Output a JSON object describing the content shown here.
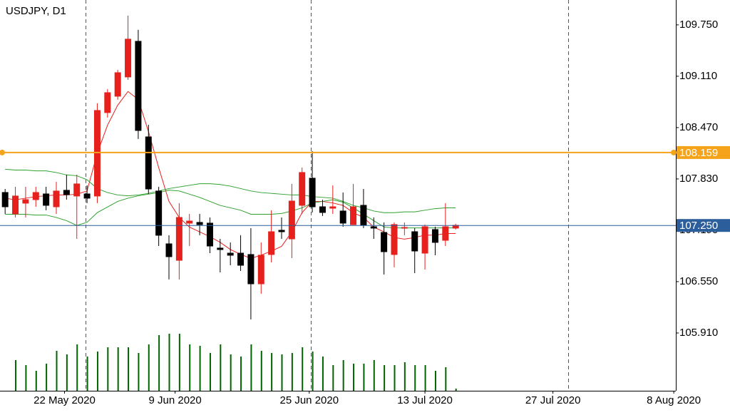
{
  "chart_data": {
    "type": "candlestick",
    "title": "USDJPY, D1",
    "categories": [
      null,
      null,
      null,
      null,
      null,
      null,
      null,
      null,
      null,
      null,
      null,
      null,
      null,
      null,
      null,
      null,
      null,
      null,
      null,
      null,
      null,
      null,
      null,
      null,
      null,
      null,
      null,
      null,
      null,
      null,
      null,
      null,
      null,
      null,
      null,
      null,
      null,
      null,
      null,
      null,
      null,
      null,
      null,
      null,
      null
    ],
    "open": [
      107.661,
      107.394,
      107.528,
      107.572,
      107.643,
      107.483,
      107.688,
      107.617,
      107.643,
      107.617,
      108.657,
      108.861,
      109.101,
      109.545,
      108.354,
      107.679,
      107.021,
      106.816,
      107.279,
      107.288,
      107.279,
      106.968,
      106.905,
      106.905,
      106.888,
      106.523,
      106.888,
      107.19,
      107.083,
      107.501,
      107.839,
      107.483,
      107.465,
      107.43,
      107.261,
      107.501,
      107.234,
      107.163,
      106.888,
      107.217,
      107.172,
      106.905,
      107.199,
      107.065,
      107.217
    ],
    "high": [
      107.705,
      107.732,
      107.732,
      107.732,
      107.732,
      107.794,
      107.883,
      107.883,
      107.75,
      108.772,
      108.95,
      109.19,
      109.865,
      109.688,
      108.505,
      107.732,
      107.128,
      107.528,
      107.394,
      107.394,
      107.35,
      107.083,
      107.039,
      107.128,
      107.217,
      107.039,
      107.439,
      107.35,
      107.768,
      107.972,
      108.177,
      107.572,
      107.75,
      107.661,
      107.768,
      107.705,
      107.35,
      107.288,
      107.288,
      107.288,
      107.217,
      107.261,
      107.234,
      107.528,
      107.272
    ],
    "low": [
      107.394,
      107.35,
      107.35,
      107.483,
      107.439,
      107.394,
      107.572,
      107.083,
      107.528,
      107.528,
      108.594,
      108.817,
      109.065,
      108.328,
      107.643,
      106.994,
      106.577,
      106.577,
      106.994,
      107.128,
      106.905,
      106.665,
      106.754,
      106.683,
      106.079,
      106.399,
      106.79,
      107.083,
      106.843,
      107.394,
      107.412,
      107.368,
      107.394,
      107.234,
      107.261,
      107.217,
      107.083,
      106.639,
      106.728,
      107.128,
      106.656,
      106.701,
      106.879,
      106.994,
      107.199
    ],
    "close": [
      107.483,
      107.617,
      107.572,
      107.661,
      107.501,
      107.679,
      107.634,
      107.768,
      107.59,
      108.683,
      108.905,
      109.154,
      109.572,
      108.434,
      107.705,
      107.128,
      106.861,
      107.35,
      107.305,
      107.261,
      106.994,
      106.95,
      106.879,
      106.754,
      106.523,
      106.879,
      107.172,
      107.172,
      107.554,
      107.91,
      107.483,
      107.412,
      107.483,
      107.279,
      107.483,
      107.252,
      107.217,
      106.923,
      107.261,
      107.225,
      106.932,
      107.234,
      107.039,
      107.234,
      107.252
    ],
    "up_color": "#e6201c",
    "down_color": "#000000",
    "lines": [
      {
        "color": "#e6201c",
        "values": [
          107.59,
          107.57,
          107.59,
          107.61,
          107.62,
          107.63,
          107.63,
          107.64,
          107.68,
          108.15,
          108.5,
          108.75,
          108.92,
          108.82,
          108.42,
          107.97,
          107.55,
          107.35,
          107.23,
          107.17,
          107.11,
          107.04,
          106.95,
          106.89,
          106.84,
          106.88,
          106.93,
          106.99,
          107.17,
          107.41,
          107.55,
          107.55,
          107.53,
          107.5,
          107.41,
          107.35,
          107.23,
          107.17,
          107.1,
          107.08,
          107.1,
          107.13,
          107.13,
          107.15,
          107.15
        ]
      },
      {
        "color": "#2ea02e",
        "values": [
          107.95,
          107.94,
          107.94,
          107.93,
          107.93,
          107.91,
          107.88,
          107.87,
          107.82,
          107.71,
          107.66,
          107.63,
          107.62,
          107.63,
          107.65,
          107.68,
          107.71,
          107.73,
          107.75,
          107.77,
          107.77,
          107.76,
          107.74,
          107.71,
          107.68,
          107.66,
          107.65,
          107.64,
          107.63,
          107.63,
          107.61,
          107.6,
          107.59,
          107.55,
          107.5,
          107.47,
          107.43,
          107.41,
          107.41,
          107.42,
          107.42,
          107.44,
          107.46,
          107.47,
          107.47
        ]
      },
      {
        "color": "#2ea02e",
        "values": [
          107.39,
          107.39,
          107.39,
          107.38,
          107.38,
          107.35,
          107.31,
          107.25,
          107.29,
          107.41,
          107.48,
          107.55,
          107.59,
          107.62,
          107.64,
          107.66,
          107.69,
          107.68,
          107.64,
          107.6,
          107.55,
          107.5,
          107.47,
          107.44,
          107.39,
          107.39,
          107.39,
          107.4,
          107.43,
          107.47,
          107.53,
          107.55,
          107.57,
          107.54,
          107.47,
          107.39,
          107.31,
          107.23,
          107.22,
          107.22,
          107.22,
          107.22,
          107.22,
          107.22,
          107.22
        ]
      }
    ],
    "volume": {
      "color": "#006400",
      "ylim": [
        0,
        100
      ],
      "values": [
        null,
        43,
        36,
        28,
        38,
        56,
        51,
        65,
        48,
        55,
        61,
        61,
        61,
        53,
        65,
        78,
        80,
        80,
        65,
        63,
        53,
        65,
        51,
        48,
        65,
        56,
        53,
        51,
        53,
        61,
        55,
        48,
        36,
        43,
        38,
        38,
        43,
        36,
        36,
        40,
        36,
        36,
        28,
        33,
        3
      ]
    },
    "hlines": [
      {
        "value": 108.159,
        "label": "108.159",
        "color": "#f5a31a"
      },
      {
        "value": 107.25,
        "label": "107.250",
        "color": "#2c5e9c"
      }
    ],
    "xlim": [
      -0.5,
      65.5
    ],
    "xticks": [
      {
        "value": 5.8,
        "label": "22 May 2020"
      },
      {
        "value": 16.6,
        "label": "9 Jun 2020"
      },
      {
        "value": 29.7,
        "label": "25 Jun 2020"
      },
      {
        "value": 41,
        "label": "13 Jul 2020"
      },
      {
        "value": 53.5,
        "label": "27 Jul 2020"
      },
      {
        "value": 65.3,
        "label": "8 Aug 2020"
      }
    ],
    "ylim": [
      105.19,
      110.06
    ],
    "yticks": [
      {
        "value": 109.75,
        "label": "109.750"
      },
      {
        "value": 109.11,
        "label": "109.110"
      },
      {
        "value": 108.47,
        "label": "108.470"
      },
      {
        "value": 107.83,
        "label": "107.830"
      },
      {
        "value": 107.19,
        "label": "107.190"
      },
      {
        "value": 106.55,
        "label": "106.550"
      },
      {
        "value": 105.91,
        "label": "105.910"
      }
    ]
  }
}
